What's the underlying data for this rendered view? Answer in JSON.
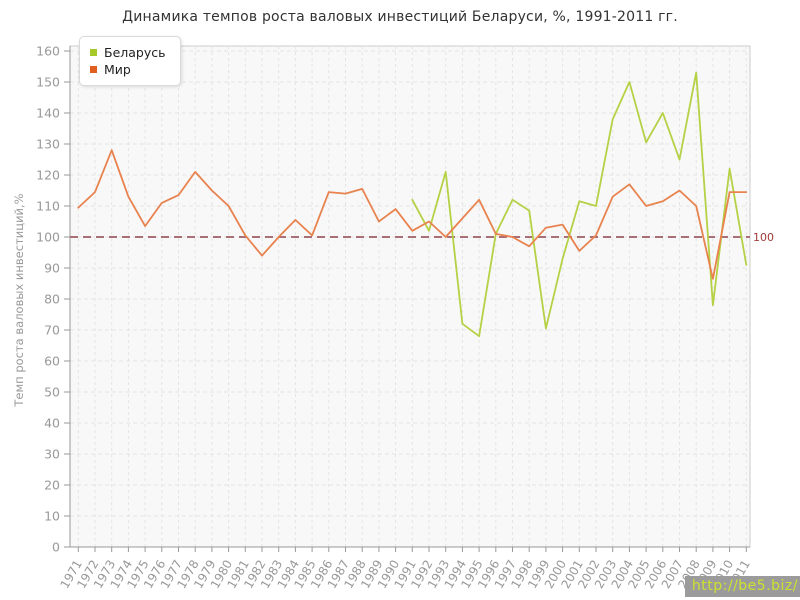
{
  "page": {
    "title": "Динамика темпов роста валовых инвестиций Беларуси, %, 1991-2011 гг."
  },
  "watermark": {
    "text": "http://be5.biz/",
    "bg_color": "#9b9b9b",
    "text_color": "#cde22e"
  },
  "axis_colors": {
    "axis": "#999999",
    "tick_label": "#999999",
    "grid": "#e4e4e4",
    "plot_bg": "#f8f8f8",
    "plot_border": "#cccccc"
  },
  "chart_data": {
    "type": "line",
    "title": "Динамика темпов роста валовых инвестиций Беларуси, %, 1991-2011 гг.",
    "xlabel": "",
    "ylabel": "Темп роста валовых инвестиций,%",
    "ylim": [
      0,
      160
    ],
    "ytick_step": 10,
    "grid": true,
    "legend_position": "top-left",
    "reference_line": {
      "value": 100,
      "label": "100",
      "color": "#a86f77",
      "label_color": "#a33c3c"
    },
    "x": [
      1971,
      1972,
      1973,
      1974,
      1975,
      1976,
      1977,
      1978,
      1979,
      1980,
      1981,
      1982,
      1983,
      1984,
      1985,
      1986,
      1987,
      1988,
      1989,
      1990,
      1991,
      1992,
      1993,
      1994,
      1995,
      1996,
      1997,
      1998,
      1999,
      2000,
      2001,
      2002,
      2003,
      2004,
      2005,
      2006,
      2007,
      2008,
      2009,
      2010,
      2011
    ],
    "series": [
      {
        "name": "Беларусь",
        "line_color": "#b5d145",
        "swatch_color": "#a6c929",
        "start_year": 1991,
        "values": [
          112,
          102,
          121,
          72,
          68,
          101,
          112,
          108.5,
          70.5,
          93,
          111.5,
          110,
          138,
          150,
          130.5,
          140,
          125,
          153,
          78,
          122,
          91
        ]
      },
      {
        "name": "Мир",
        "line_color": "#e8824e",
        "swatch_color": "#e05f20",
        "start_year": 1971,
        "values": [
          109.5,
          114.5,
          128,
          113,
          103.5,
          111,
          113.5,
          121,
          115,
          110,
          100.5,
          94,
          100,
          105.5,
          100.5,
          114.5,
          114,
          115.5,
          105,
          109,
          102,
          105,
          100,
          106,
          112,
          101,
          100,
          97,
          103,
          104,
          95.5,
          100.5,
          113,
          117,
          110,
          111.5,
          115,
          110,
          86.5,
          114.5,
          114.5
        ]
      }
    ]
  }
}
